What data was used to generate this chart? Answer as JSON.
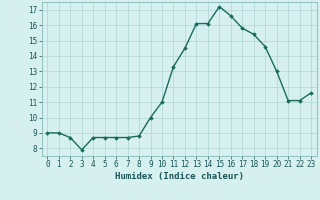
{
  "x": [
    0,
    1,
    2,
    3,
    4,
    5,
    6,
    7,
    8,
    9,
    10,
    11,
    12,
    13,
    14,
    15,
    16,
    17,
    18,
    19,
    20,
    21,
    22,
    23
  ],
  "y": [
    9.0,
    9.0,
    8.7,
    7.9,
    8.7,
    8.7,
    8.7,
    8.7,
    8.8,
    10.0,
    11.0,
    13.3,
    14.5,
    16.1,
    16.1,
    17.2,
    16.6,
    15.8,
    15.4,
    14.6,
    13.0,
    11.1,
    11.1,
    11.6
  ],
  "line_color": "#1a6b5a",
  "marker": "D",
  "markersize": 1.8,
  "linewidth": 1.0,
  "bg_color": "#d6f0f0",
  "grid_color": "#aed4d4",
  "xlabel": "Humidex (Indice chaleur)",
  "xlabel_fontsize": 6.5,
  "tick_fontsize": 5.5,
  "ylim": [
    7.5,
    17.5
  ],
  "xlim": [
    -0.5,
    23.5
  ],
  "yticks": [
    8,
    9,
    10,
    11,
    12,
    13,
    14,
    15,
    16,
    17
  ],
  "xticks": [
    0,
    1,
    2,
    3,
    4,
    5,
    6,
    7,
    8,
    9,
    10,
    11,
    12,
    13,
    14,
    15,
    16,
    17,
    18,
    19,
    20,
    21,
    22,
    23
  ],
  "spine_color": "#7aadad"
}
